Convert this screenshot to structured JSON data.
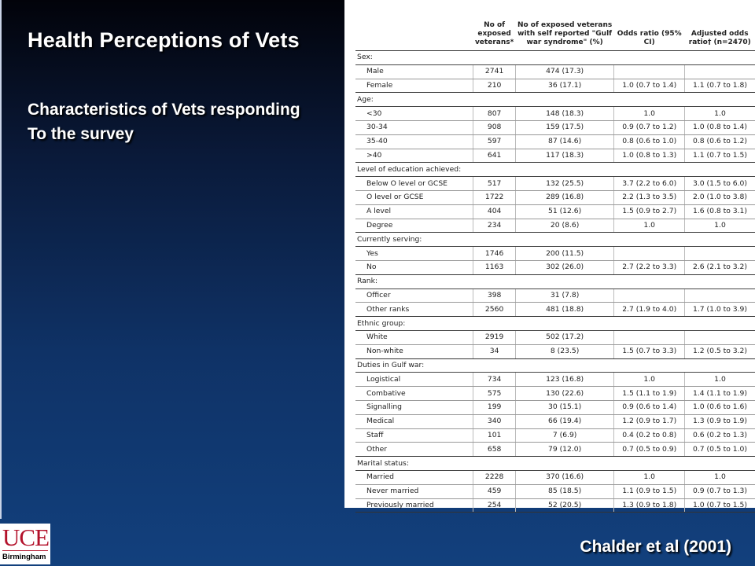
{
  "slide": {
    "title": "Health Perceptions of Vets",
    "subtitle_line1": "Characteristics of Vets responding",
    "subtitle_line2": "To the survey",
    "citation": "Chalder et al (2001)",
    "logo": {
      "mark": "UCE",
      "text": "Birmingham",
      "color": "#b3122b"
    }
  },
  "table": {
    "headers": [
      "",
      "No of exposed veterans*",
      "No of exposed veterans with self reported \"Gulf war syndrome\" (%)",
      "Odds ratio (95% CI)",
      "Adjusted odds ratio† (n=2470)"
    ],
    "groups": [
      {
        "label": "Sex:",
        "rows": [
          [
            "Male",
            "2741",
            "474 (17.3)",
            "",
            ""
          ],
          [
            "Female",
            "210",
            "36 (17.1)",
            "1.0 (0.7 to 1.4)",
            "1.1 (0.7 to 1.8)"
          ]
        ]
      },
      {
        "label": "Age:",
        "rows": [
          [
            "<30",
            "807",
            "148 (18.3)",
            "1.0",
            "1.0"
          ],
          [
            "30-34",
            "908",
            "159 (17.5)",
            "0.9 (0.7 to 1.2)",
            "1.0 (0.8 to 1.4)"
          ],
          [
            "35-40",
            "597",
            "87 (14.6)",
            "0.8 (0.6 to 1.0)",
            "0.8 (0.6 to 1.2)"
          ],
          [
            ">40",
            "641",
            "117 (18.3)",
            "1.0 (0.8 to 1.3)",
            "1.1 (0.7 to 1.5)"
          ]
        ]
      },
      {
        "label": "Level of education achieved:",
        "rows": [
          [
            "Below O level or GCSE",
            "517",
            "132 (25.5)",
            "3.7 (2.2 to 6.0)",
            "3.0 (1.5 to 6.0)"
          ],
          [
            "O level or GCSE",
            "1722",
            "289 (16.8)",
            "2.2 (1.3 to 3.5)",
            "2.0 (1.0 to 3.8)"
          ],
          [
            "A level",
            "404",
            "51 (12.6)",
            "1.5 (0.9 to 2.7)",
            "1.6 (0.8 to 3.1)"
          ],
          [
            "Degree",
            "234",
            "20 (8.6)",
            "1.0",
            "1.0"
          ]
        ]
      },
      {
        "label": "Currently serving:",
        "rows": [
          [
            "Yes",
            "1746",
            "200 (11.5)",
            "",
            ""
          ],
          [
            "No",
            "1163",
            "302 (26.0)",
            "2.7 (2.2 to 3.3)",
            "2.6 (2.1 to 3.2)"
          ]
        ]
      },
      {
        "label": "Rank:",
        "rows": [
          [
            "Officer",
            "398",
            "31 (7.8)",
            "",
            ""
          ],
          [
            "Other ranks",
            "2560",
            "481 (18.8)",
            "2.7 (1.9 to 4.0)",
            "1.7 (1.0 to 3.9)"
          ]
        ]
      },
      {
        "label": "Ethnic group:",
        "rows": [
          [
            "White",
            "2919",
            "502 (17.2)",
            "",
            ""
          ],
          [
            "Non-white",
            "34",
            "8 (23.5)",
            "1.5 (0.7 to 3.3)",
            "1.2 (0.5 to 3.2)"
          ]
        ]
      },
      {
        "label": "Duties in Gulf war:",
        "rows": [
          [
            "Logistical",
            "734",
            "123 (16.8)",
            "1.0",
            "1.0"
          ],
          [
            "Combative",
            "575",
            "130 (22.6)",
            "1.5 (1.1 to 1.9)",
            "1.4 (1.1 to 1.9)"
          ],
          [
            "Signalling",
            "199",
            "30 (15.1)",
            "0.9 (0.6 to 1.4)",
            "1.0 (0.6 to 1.6)"
          ],
          [
            "Medical",
            "340",
            "66 (19.4)",
            "1.2 (0.9 to 1.7)",
            "1.3 (0.9 to 1.9)"
          ],
          [
            "Staff",
            "101",
            "7 (6.9)",
            "0.4 (0.2 to 0.8)",
            "0.6 (0.2 to 1.3)"
          ],
          [
            "Other",
            "658",
            "79 (12.0)",
            "0.7 (0.5 to 0.9)",
            "0.7 (0.5 to 1.0)"
          ]
        ]
      },
      {
        "label": "Marital status:",
        "rows": [
          [
            "Married",
            "2228",
            "370 (16.6)",
            "1.0",
            "1.0"
          ],
          [
            "Never married",
            "459",
            "85 (18.5)",
            "1.1 (0.9 to 1.5)",
            "0.9 (0.7 to 1.3)"
          ],
          [
            "Previously married",
            "254",
            "52 (20.5)",
            "1.3 (0.9 to 1.8)",
            "1.0 (0.7 to 1.5)"
          ]
        ]
      }
    ]
  }
}
